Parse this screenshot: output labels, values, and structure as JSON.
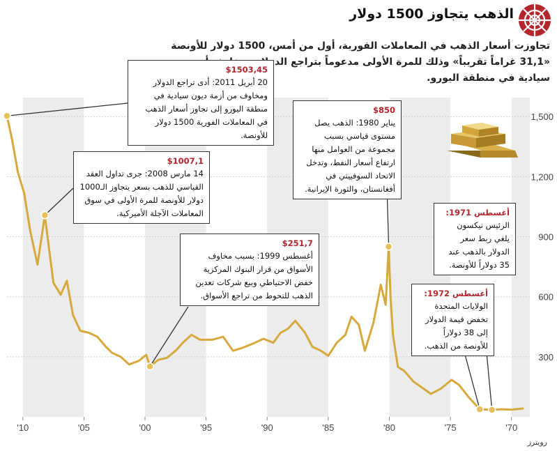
{
  "header": {
    "title": "الذهب يتجاوز 1500 دولار",
    "subtitle": "تجاوزت أسعار الذهب في المعاملات الفورية، أول من أمس، 1500 دولار للأونصة «31,1 غراماً تقريباً» وذلك للمرة الأولى مدعوماً بتراجع الدولار ومخاوف أزمة ديون سيادية في منطقة اليورو.",
    "source": "رويترز"
  },
  "colors": {
    "series": "#d5a93c",
    "marker": "#e6c15a",
    "accent": "#b3262e",
    "band": "#ececec"
  },
  "icons": {
    "logo": "rosette-logo-icon",
    "gold": "gold-bars-icon"
  },
  "callouts": [
    {
      "id": "2011",
      "amount": "$1503,45",
      "text": "20 أبريل 2011: أدى تراجع الدولار ومخاوف من أزمة ديون سيادية في منطقة اليورو إلى تجاوز أسعار الذهب في المعاملات الفورية 1500 دولار للأونصة."
    },
    {
      "id": "2008",
      "amount": "$1007,1",
      "text": "14 مارس 2008: جرى تداول العقد القياسي للذهب بسعر يتجاوز الـ1000 دولار للأونصة للمرة الأولى في سوق المعاملات الآجلة الأميركية."
    },
    {
      "id": "1999",
      "amount": "$251,7",
      "text": "أغسطس 1999: بسبب مخاوف الأسواق من قرار البنوك المركزية خفض الاحتياطي وبيع شركات تعدين الذهب للتحوط من تراجع الأسواق."
    },
    {
      "id": "1980",
      "amount": "$850",
      "text": "يناير 1980: الذهب يصل مستوى قياسي بسبب مجموعة من العوامل منها ارتفاع أسعار النفط، وتدخل الاتحاد السوفييتي في أفغانستان، والثورة الإيرانية."
    },
    {
      "id": "1971",
      "amount": "أغسطس 1971:",
      "text": "الرئيس نيكسون يلغي ربط سعر الدولار بالذهب عند 35 دولاراً للأونصة."
    },
    {
      "id": "1972",
      "amount": "أغسطس 1972:",
      "text": "الولايات المتحدة تخفض قيمة الدولار إلى 38 دولاراً للأونصة من الذهب."
    }
  ],
  "chart_data": {
    "type": "line",
    "x_axis": {
      "min": 1968.5,
      "max": 2011.3,
      "reversed": true
    },
    "ylim": [
      0,
      1560
    ],
    "x_ticks": [
      {
        "year": 2010,
        "label": "'10"
      },
      {
        "year": 2005,
        "label": "'05"
      },
      {
        "year": 2000,
        "label": "'00"
      },
      {
        "year": 1995,
        "label": "'95"
      },
      {
        "year": 1990,
        "label": "'90"
      },
      {
        "year": 1985,
        "label": "'85"
      },
      {
        "year": 1980,
        "label": "'80"
      },
      {
        "year": 1975,
        "label": "'75"
      },
      {
        "year": 1970,
        "label": "'70"
      }
    ],
    "y_ticks": [
      {
        "value": 1500,
        "label": "1,500"
      },
      {
        "value": 1200,
        "label": "1,200"
      },
      {
        "value": 900,
        "label": "900"
      },
      {
        "value": 600,
        "label": "600"
      },
      {
        "value": 300,
        "label": "300"
      }
    ],
    "series": [
      {
        "points": [
          [
            1969,
            42
          ],
          [
            1970,
            36
          ],
          [
            1970.8,
            38
          ],
          [
            1971.6,
            35
          ],
          [
            1972.6,
            38
          ],
          [
            1973.5,
            98
          ],
          [
            1974.3,
            160
          ],
          [
            1974.9,
            185
          ],
          [
            1975.8,
            140
          ],
          [
            1976.6,
            115
          ],
          [
            1977.3,
            145
          ],
          [
            1978,
            175
          ],
          [
            1978.8,
            230
          ],
          [
            1979.3,
            250
          ],
          [
            1979.7,
            410
          ],
          [
            1979.9,
            600
          ],
          [
            1980.05,
            850
          ],
          [
            1980.3,
            560
          ],
          [
            1980.7,
            660
          ],
          [
            1981.3,
            470
          ],
          [
            1982,
            330
          ],
          [
            1982.5,
            460
          ],
          [
            1983.1,
            500
          ],
          [
            1983.6,
            410
          ],
          [
            1984.3,
            370
          ],
          [
            1985,
            305
          ],
          [
            1985.6,
            330
          ],
          [
            1986.3,
            350
          ],
          [
            1986.9,
            420
          ],
          [
            1987.7,
            480
          ],
          [
            1988.3,
            440
          ],
          [
            1988.9,
            420
          ],
          [
            1989.5,
            370
          ],
          [
            1990.3,
            390
          ],
          [
            1991,
            370
          ],
          [
            1992,
            345
          ],
          [
            1992.8,
            330
          ],
          [
            1993.6,
            400
          ],
          [
            1994.5,
            385
          ],
          [
            1995.5,
            385
          ],
          [
            1996.2,
            410
          ],
          [
            1996.9,
            370
          ],
          [
            1997.5,
            330
          ],
          [
            1998.2,
            295
          ],
          [
            1998.9,
            285
          ],
          [
            1999.6,
            252
          ],
          [
            1999.9,
            310
          ],
          [
            2000.5,
            280
          ],
          [
            2001.3,
            262
          ],
          [
            2002,
            300
          ],
          [
            2002.7,
            320
          ],
          [
            2003.2,
            350
          ],
          [
            2003.9,
            400
          ],
          [
            2004.6,
            420
          ],
          [
            2005.3,
            430
          ],
          [
            2005.9,
            510
          ],
          [
            2006.4,
            680
          ],
          [
            2006.9,
            610
          ],
          [
            2007.5,
            670
          ],
          [
            2008.2,
            1007
          ],
          [
            2008.8,
            760
          ],
          [
            2009.4,
            930
          ],
          [
            2009.9,
            1120
          ],
          [
            2010.4,
            1220
          ],
          [
            2010.9,
            1390
          ],
          [
            2011.3,
            1503
          ]
        ],
        "markers": [
          {
            "year": 2011.3,
            "value": 1503.45
          },
          {
            "year": 2008.2,
            "value": 1007.1
          },
          {
            "year": 1999.6,
            "value": 251.7
          },
          {
            "year": 1980.05,
            "value": 850
          },
          {
            "year": 1971.6,
            "value": 35
          },
          {
            "year": 1972.6,
            "value": 38
          }
        ]
      }
    ]
  }
}
